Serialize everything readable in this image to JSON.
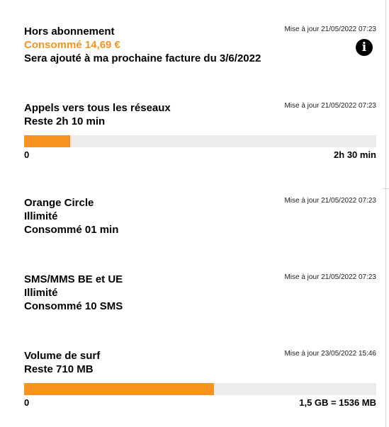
{
  "sections": [
    {
      "title": "Hors abonnement",
      "updated": "Mise à jour 21/05/2022 07:23",
      "consumed": "Consommé 14,69 €",
      "note": "Sera ajouté à ma prochaine facture du 3/6/2022",
      "info_icon": "info-icon"
    },
    {
      "title": "Appels vers tous les réseaux",
      "updated": "Mise à jour 21/05/2022 07:23",
      "remaining": "Reste 2h 10 min",
      "bar_min": "0",
      "bar_max": "2h 30 min",
      "used_fraction": 0.13,
      "bar_color": "#f7931e"
    },
    {
      "title": "Orange Circle",
      "updated": "Mise à jour 21/05/2022 07:23",
      "line1": "Illimité",
      "line2": "Consommé 01 min"
    },
    {
      "title": "SMS/MMS BE et UE",
      "updated": "Mise à jour 21/05/2022 07:23",
      "line1": "Illimité",
      "line2": "Consommé 10 SMS"
    },
    {
      "title": "Volume de surf",
      "updated": "Mise à jour 23/05/2022 15:46",
      "remaining": "Reste 710 MB",
      "bar_min": "0",
      "bar_max": "1,5 GB = 1536 MB",
      "used_fraction": 0.54,
      "bar_color": "#f7931e"
    }
  ],
  "colors": {
    "accent": "#f7931e",
    "track": "#ececec"
  }
}
